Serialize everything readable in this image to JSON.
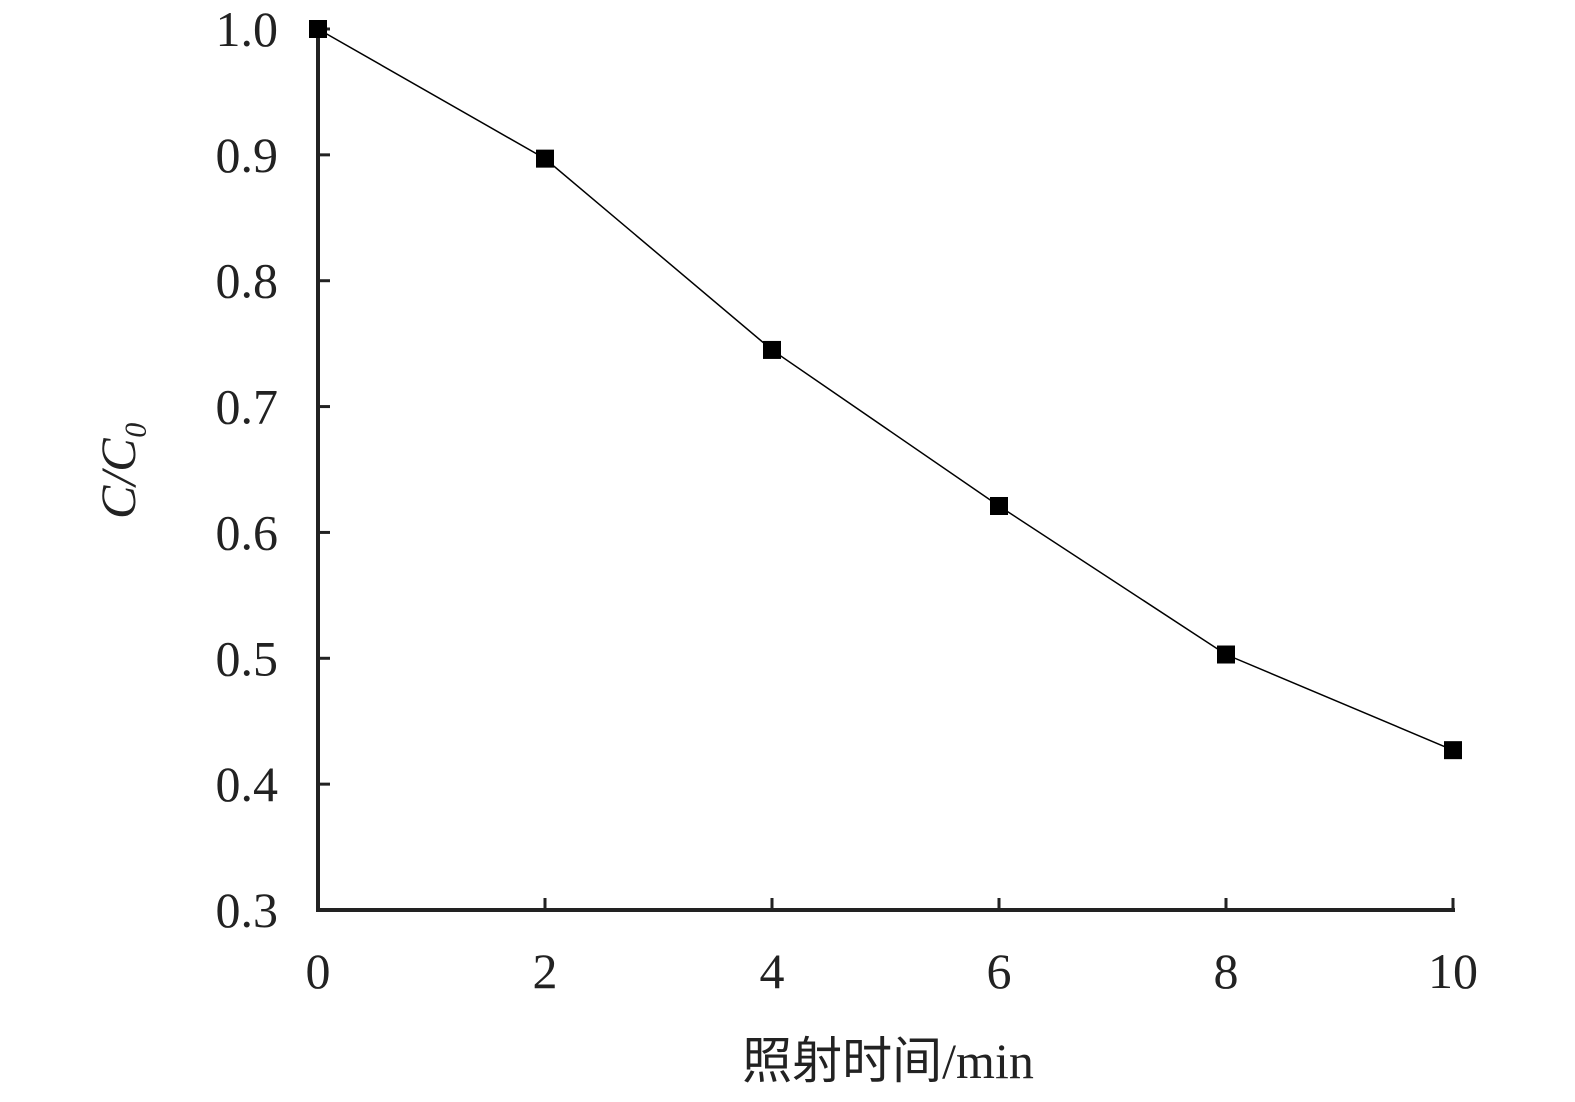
{
  "chart_data": {
    "type": "line",
    "x_label": "照射时间/min",
    "y_label": "C/C₀",
    "x": [
      0,
      2,
      4,
      6,
      8,
      10
    ],
    "series": [
      {
        "color": "#000000",
        "values": [
          1.0,
          0.897,
          0.745,
          0.621,
          0.503,
          0.427
        ]
      }
    ],
    "xlim": [
      0,
      10
    ],
    "xticks": [
      0,
      2,
      4,
      6,
      8,
      10
    ],
    "ylim": [
      0.3,
      1.0
    ],
    "yticks": [
      0.3,
      0.4,
      0.5,
      0.6,
      0.7,
      0.8,
      0.9,
      {
        "value": 1.0,
        "label": "1.0"
      }
    ],
    "grid": false
  }
}
